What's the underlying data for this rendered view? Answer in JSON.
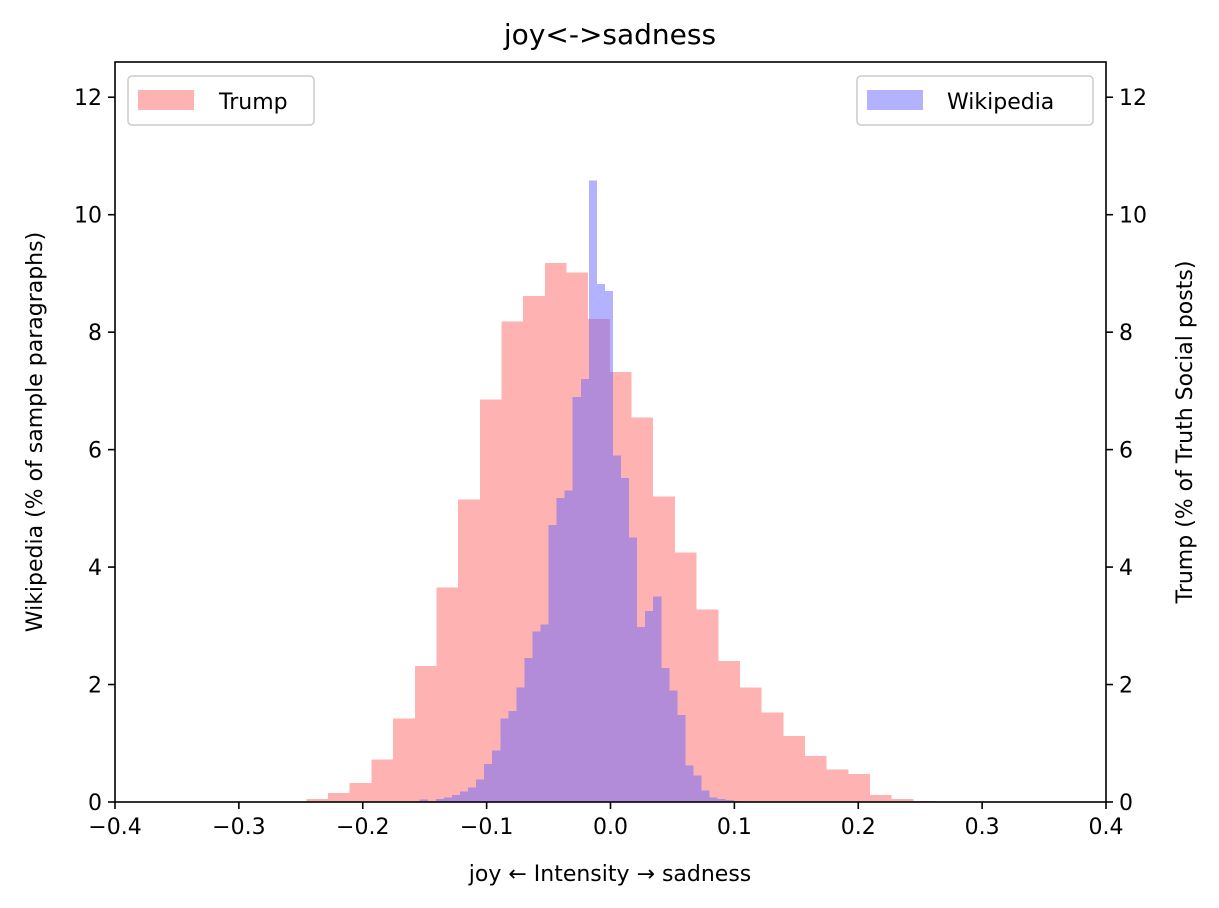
{
  "chart_data": {
    "type": "bar",
    "title": "joy<->sadness",
    "xlabel": "joy ← Intensity → sadness",
    "ylabel_left": "Wikipedia (% of sample paragraphs)",
    "ylabel_right": "Trump (% of Truth Social posts)",
    "xlim": [
      -0.4,
      0.4
    ],
    "ylim": [
      0,
      12.6
    ],
    "x_ticks": [
      -0.4,
      -0.3,
      -0.2,
      -0.1,
      0.0,
      0.1,
      0.2,
      0.3,
      0.4
    ],
    "x_tick_labels": [
      "−0.4",
      "−0.3",
      "−0.2",
      "−0.1",
      "0.0",
      "0.1",
      "0.2",
      "0.3",
      "0.4"
    ],
    "y_ticks": [
      0,
      2,
      4,
      6,
      8,
      10,
      12
    ],
    "y_tick_labels": [
      "0",
      "2",
      "4",
      "6",
      "8",
      "10",
      "12"
    ],
    "grid": false,
    "series": [
      {
        "name": "Trump",
        "axis": "right",
        "color": "#ff6666",
        "opacity": 0.5,
        "legend_position": "upper-left",
        "bins": [
          [
            -0.2455,
            -0.228,
            0.05
          ],
          [
            -0.228,
            -0.2105,
            0.15
          ],
          [
            -0.2105,
            -0.193,
            0.32
          ],
          [
            -0.193,
            -0.1755,
            0.72
          ],
          [
            -0.1755,
            -0.158,
            1.42
          ],
          [
            -0.158,
            -0.1405,
            2.32
          ],
          [
            -0.1405,
            -0.123,
            3.65
          ],
          [
            -0.123,
            -0.1055,
            5.15
          ],
          [
            -0.1055,
            -0.088,
            6.85
          ],
          [
            -0.088,
            -0.0705,
            8.18
          ],
          [
            -0.0705,
            -0.053,
            8.62
          ],
          [
            -0.053,
            -0.0355,
            9.18
          ],
          [
            -0.0355,
            -0.018,
            9.02
          ],
          [
            -0.018,
            -0.0005,
            8.22
          ],
          [
            -0.0005,
            0.017,
            7.32
          ],
          [
            0.017,
            0.0345,
            6.55
          ],
          [
            0.0345,
            0.052,
            5.2
          ],
          [
            0.052,
            0.0695,
            4.25
          ],
          [
            0.0695,
            0.087,
            3.28
          ],
          [
            0.087,
            0.1045,
            2.4
          ],
          [
            0.1045,
            0.122,
            1.95
          ],
          [
            0.122,
            0.1395,
            1.52
          ],
          [
            0.1395,
            0.157,
            1.12
          ],
          [
            0.157,
            0.1745,
            0.78
          ],
          [
            0.1745,
            0.192,
            0.55
          ],
          [
            0.192,
            0.2095,
            0.48
          ],
          [
            0.2095,
            0.227,
            0.12
          ],
          [
            0.227,
            0.2445,
            0.05
          ],
          [
            0.2445,
            0.262,
            0.02
          ]
        ]
      },
      {
        "name": "Wikipedia",
        "axis": "left",
        "color": "#6666ff",
        "opacity": 0.5,
        "legend_position": "upper-right",
        "bins": [
          [
            -0.154,
            -0.1475,
            0.04
          ],
          [
            -0.1475,
            -0.141,
            0.02
          ],
          [
            -0.141,
            -0.1345,
            0.05
          ],
          [
            -0.1345,
            -0.128,
            0.08
          ],
          [
            -0.128,
            -0.1215,
            0.12
          ],
          [
            -0.1215,
            -0.115,
            0.18
          ],
          [
            -0.115,
            -0.1085,
            0.25
          ],
          [
            -0.1085,
            -0.102,
            0.38
          ],
          [
            -0.102,
            -0.0955,
            0.65
          ],
          [
            -0.0955,
            -0.089,
            0.88
          ],
          [
            -0.089,
            -0.0825,
            1.42
          ],
          [
            -0.0825,
            -0.076,
            1.55
          ],
          [
            -0.076,
            -0.0695,
            1.95
          ],
          [
            -0.0695,
            -0.063,
            2.45
          ],
          [
            -0.063,
            -0.0565,
            2.9
          ],
          [
            -0.0565,
            -0.05,
            3.02
          ],
          [
            -0.05,
            -0.0435,
            4.72
          ],
          [
            -0.0435,
            -0.037,
            5.18
          ],
          [
            -0.037,
            -0.0305,
            5.3
          ],
          [
            -0.0305,
            -0.024,
            6.9
          ],
          [
            -0.024,
            -0.0175,
            7.2
          ],
          [
            -0.0175,
            -0.011,
            10.58
          ],
          [
            -0.011,
            -0.0045,
            8.82
          ],
          [
            -0.0045,
            0.002,
            8.7
          ],
          [
            0.002,
            0.0085,
            5.9
          ],
          [
            0.0085,
            0.015,
            5.52
          ],
          [
            0.015,
            0.0215,
            4.5
          ],
          [
            0.0215,
            0.028,
            2.98
          ],
          [
            0.028,
            0.0345,
            3.25
          ],
          [
            0.0345,
            0.041,
            3.5
          ],
          [
            0.041,
            0.0475,
            2.28
          ],
          [
            0.0475,
            0.054,
            1.9
          ],
          [
            0.054,
            0.0605,
            1.48
          ],
          [
            0.0605,
            0.067,
            0.62
          ],
          [
            0.067,
            0.0735,
            0.45
          ],
          [
            0.0735,
            0.08,
            0.2
          ],
          [
            0.08,
            0.0865,
            0.08
          ],
          [
            0.0865,
            0.093,
            0.05
          ],
          [
            0.093,
            0.0995,
            0.03
          ],
          [
            0.0995,
            0.106,
            0.02
          ]
        ]
      }
    ]
  }
}
